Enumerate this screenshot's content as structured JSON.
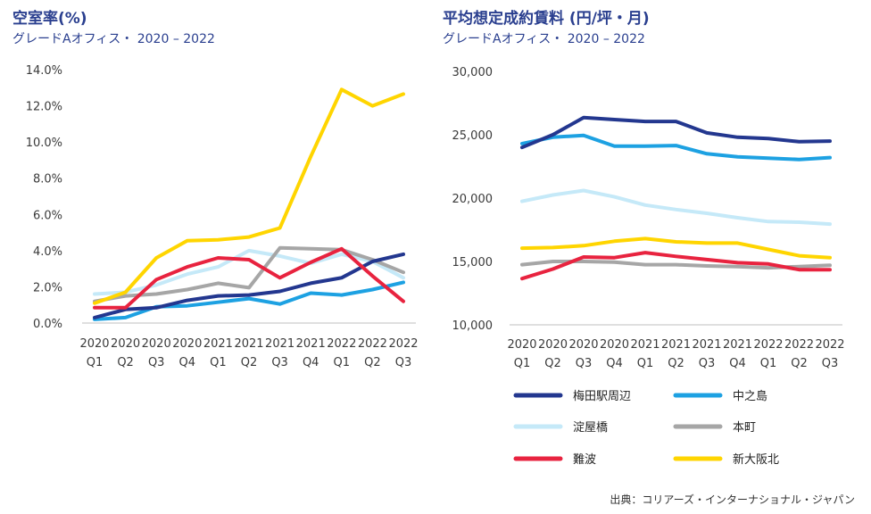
{
  "chart_data": [
    {
      "type": "line",
      "title": "空室率(%)",
      "subtitle": "グレードAオフィス・ 2020 – 2022",
      "categories": [
        [
          "2020",
          "Q1"
        ],
        [
          "2020",
          "Q2"
        ],
        [
          "2020",
          "Q3"
        ],
        [
          "2020",
          "Q4"
        ],
        [
          "2021",
          "Q1"
        ],
        [
          "2021",
          "Q2"
        ],
        [
          "2021",
          "Q3"
        ],
        [
          "2021",
          "Q4"
        ],
        [
          "2022",
          "Q1"
        ],
        [
          "2022",
          "Q2"
        ],
        [
          "2022",
          "Q3"
        ]
      ],
      "ylim": [
        0,
        14
      ],
      "yticks": [
        "0.0%",
        "2.0%",
        "4.0%",
        "6.0%",
        "8.0%",
        "10.0%",
        "12.0%",
        "14.0%"
      ],
      "series": [
        {
          "name": "淀屋橋",
          "color": "#c5e9f8",
          "values": [
            1.6,
            1.7,
            2.1,
            2.7,
            3.1,
            4.0,
            3.7,
            3.3,
            3.8,
            3.4,
            2.5
          ]
        },
        {
          "name": "本町",
          "color": "#a6a6a6",
          "values": [
            1.2,
            1.5,
            1.6,
            1.85,
            2.2,
            1.95,
            4.15,
            4.1,
            4.05,
            3.5,
            2.8
          ]
        },
        {
          "name": "中之島",
          "color": "#1da1e2",
          "values": [
            0.2,
            0.3,
            0.9,
            0.95,
            1.15,
            1.35,
            1.05,
            1.65,
            1.55,
            1.85,
            2.25
          ]
        },
        {
          "name": "梅田駅周辺",
          "color": "#23378f",
          "values": [
            0.3,
            0.75,
            0.85,
            1.25,
            1.5,
            1.55,
            1.75,
            2.2,
            2.5,
            3.4,
            3.8
          ]
        },
        {
          "name": "難波",
          "color": "#e8233f",
          "values": [
            0.85,
            0.85,
            2.4,
            3.1,
            3.6,
            3.5,
            2.5,
            3.35,
            4.1,
            2.6,
            1.2
          ]
        },
        {
          "name": "新大阪北",
          "color": "#ffd500",
          "values": [
            1.1,
            1.7,
            3.6,
            4.55,
            4.6,
            4.75,
            5.25,
            9.2,
            12.9,
            12.0,
            12.65
          ]
        }
      ]
    },
    {
      "type": "line",
      "title": "平均想定成約賃料 (円/坪・月)",
      "subtitle": "グレードAオフィス・ 2020 – 2022",
      "categories": [
        [
          "2020",
          "Q1"
        ],
        [
          "2020",
          "Q2"
        ],
        [
          "2020",
          "Q3"
        ],
        [
          "2020",
          "Q4"
        ],
        [
          "2021",
          "Q1"
        ],
        [
          "2021",
          "Q2"
        ],
        [
          "2021",
          "Q3"
        ],
        [
          "2021",
          "Q4"
        ],
        [
          "2022",
          "Q1"
        ],
        [
          "2022",
          "Q2"
        ],
        [
          "2022",
          "Q3"
        ]
      ],
      "ylim": [
        10000,
        30000
      ],
      "yticks": [
        "10,000",
        "15,000",
        "20,000",
        "25,000",
        "30,000"
      ],
      "series": [
        {
          "name": "淀屋橋",
          "color": "#c5e9f8",
          "values": [
            19750,
            20250,
            20600,
            20100,
            19450,
            19100,
            18800,
            18450,
            18150,
            18100,
            17950
          ]
        },
        {
          "name": "本町",
          "color": "#a6a6a6",
          "values": [
            14750,
            15000,
            15000,
            14950,
            14750,
            14750,
            14650,
            14600,
            14500,
            14600,
            14700
          ]
        },
        {
          "name": "難波",
          "color": "#e8233f",
          "values": [
            13650,
            14400,
            15350,
            15300,
            15700,
            15400,
            15150,
            14900,
            14800,
            14350,
            14350
          ]
        },
        {
          "name": "新大阪北",
          "color": "#ffd500",
          "values": [
            16050,
            16100,
            16250,
            16600,
            16800,
            16550,
            16450,
            16450,
            15950,
            15450,
            15300
          ]
        },
        {
          "name": "中之島",
          "color": "#1da1e2",
          "values": [
            24300,
            24800,
            24950,
            24100,
            24100,
            24150,
            23500,
            23250,
            23150,
            23050,
            23200
          ]
        },
        {
          "name": "梅田駅周辺",
          "color": "#23378f",
          "values": [
            24000,
            25000,
            26350,
            26200,
            26050,
            26050,
            25150,
            24800,
            24700,
            24450,
            24500
          ]
        }
      ]
    }
  ],
  "legend": [
    {
      "name": "梅田駅周辺",
      "color": "#23378f"
    },
    {
      "name": "中之島",
      "color": "#1da1e2"
    },
    {
      "name": "淀屋橋",
      "color": "#c5e9f8"
    },
    {
      "name": "本町",
      "color": "#a6a6a6"
    },
    {
      "name": "難波",
      "color": "#e8233f"
    },
    {
      "name": "新大阪北",
      "color": "#ffd500"
    }
  ],
  "source": "出典：コリアーズ・インターナショナル・ジャパン"
}
